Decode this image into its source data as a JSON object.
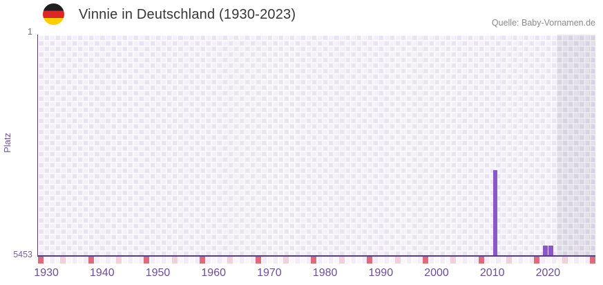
{
  "header": {
    "title": "Vinnie in Deutschland (1930-2023)",
    "flag_icon": "german-flag",
    "source": "Quelle: Baby-Vornamen.de"
  },
  "chart_data": {
    "type": "bar",
    "title": "Vinnie in Deutschland (1930-2023)",
    "xlabel": "",
    "ylabel": "Platz",
    "y_axis": {
      "min": 1,
      "max": 5453,
      "min_label": "1",
      "max_label": "5453",
      "inverted": true
    },
    "x_axis": {
      "domain_start": 1928.5,
      "domain_end": 2028.5,
      "tick_years": [
        1930,
        1940,
        1950,
        1960,
        1970,
        1980,
        1990,
        2000,
        2010,
        2020
      ]
    },
    "series": [
      {
        "name": "Platz",
        "points": [
          {
            "year": 2010,
            "rank": 3345
          },
          {
            "year": 2019,
            "rank": 5205
          },
          {
            "year": 2020,
            "rank": 5205
          }
        ]
      }
    ],
    "shaded_region": {
      "from_year": 2021.5,
      "to_year": 2028.5
    },
    "five_year_marks": {
      "red_years": [
        1928,
        1938,
        1948,
        1958,
        1968,
        1978,
        1988,
        1998,
        2008,
        2018,
        2028
      ],
      "pink_years": [
        1933,
        1943,
        1953,
        1963,
        1973,
        1983,
        1993,
        2003,
        2013,
        2023
      ]
    },
    "grid": true,
    "colors": {
      "bar": "#8a57c9",
      "axis_line": "#553b92",
      "tick_label": "#6b4ba3",
      "grid_cell_dark": "#e9e3f4",
      "grid_cell_light": "#f4f0fb",
      "red_mark": "#e0697a",
      "pink_mark": "#f2d0da"
    }
  }
}
